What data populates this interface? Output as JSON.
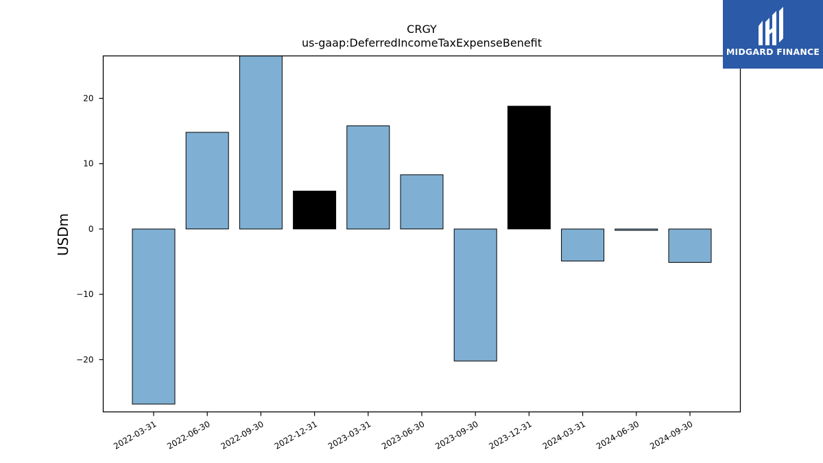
{
  "logo": {
    "text": "MIDGARD FINANCE",
    "bg_color": "#2b5aa8",
    "icon": "midgard-m-logo-icon"
  },
  "chart_data": {
    "type": "bar",
    "title": "CRGY",
    "subtitle": "us-gaap:DeferredIncomeTaxExpenseBenefit",
    "xlabel": "",
    "ylabel": "USDm",
    "ylim": [
      -28,
      26.5
    ],
    "yticks": [
      -20,
      -10,
      0,
      10,
      20
    ],
    "ytick_labels": [
      "−20",
      "−10",
      "0",
      "10",
      "20"
    ],
    "categories": [
      "2022-03-31",
      "2022-06-30",
      "2022-09-30",
      "2022-12-31",
      "2023-03-31",
      "2023-06-30",
      "2023-09-30",
      "2023-12-31",
      "2024-03-31",
      "2024-06-30",
      "2024-09-30"
    ],
    "values": [
      -26.8,
      14.8,
      26.5,
      5.8,
      15.8,
      8.3,
      -20.2,
      18.8,
      -4.9,
      -0.2,
      -5.1
    ],
    "bar_colors": [
      "#7fb0d3",
      "#7fb0d3",
      "#7fb0d3",
      "#000000",
      "#7fb0d3",
      "#7fb0d3",
      "#7fb0d3",
      "#000000",
      "#7fb0d3",
      "#7fb0d3",
      "#7fb0d3"
    ],
    "grid": false,
    "legend": "none"
  }
}
